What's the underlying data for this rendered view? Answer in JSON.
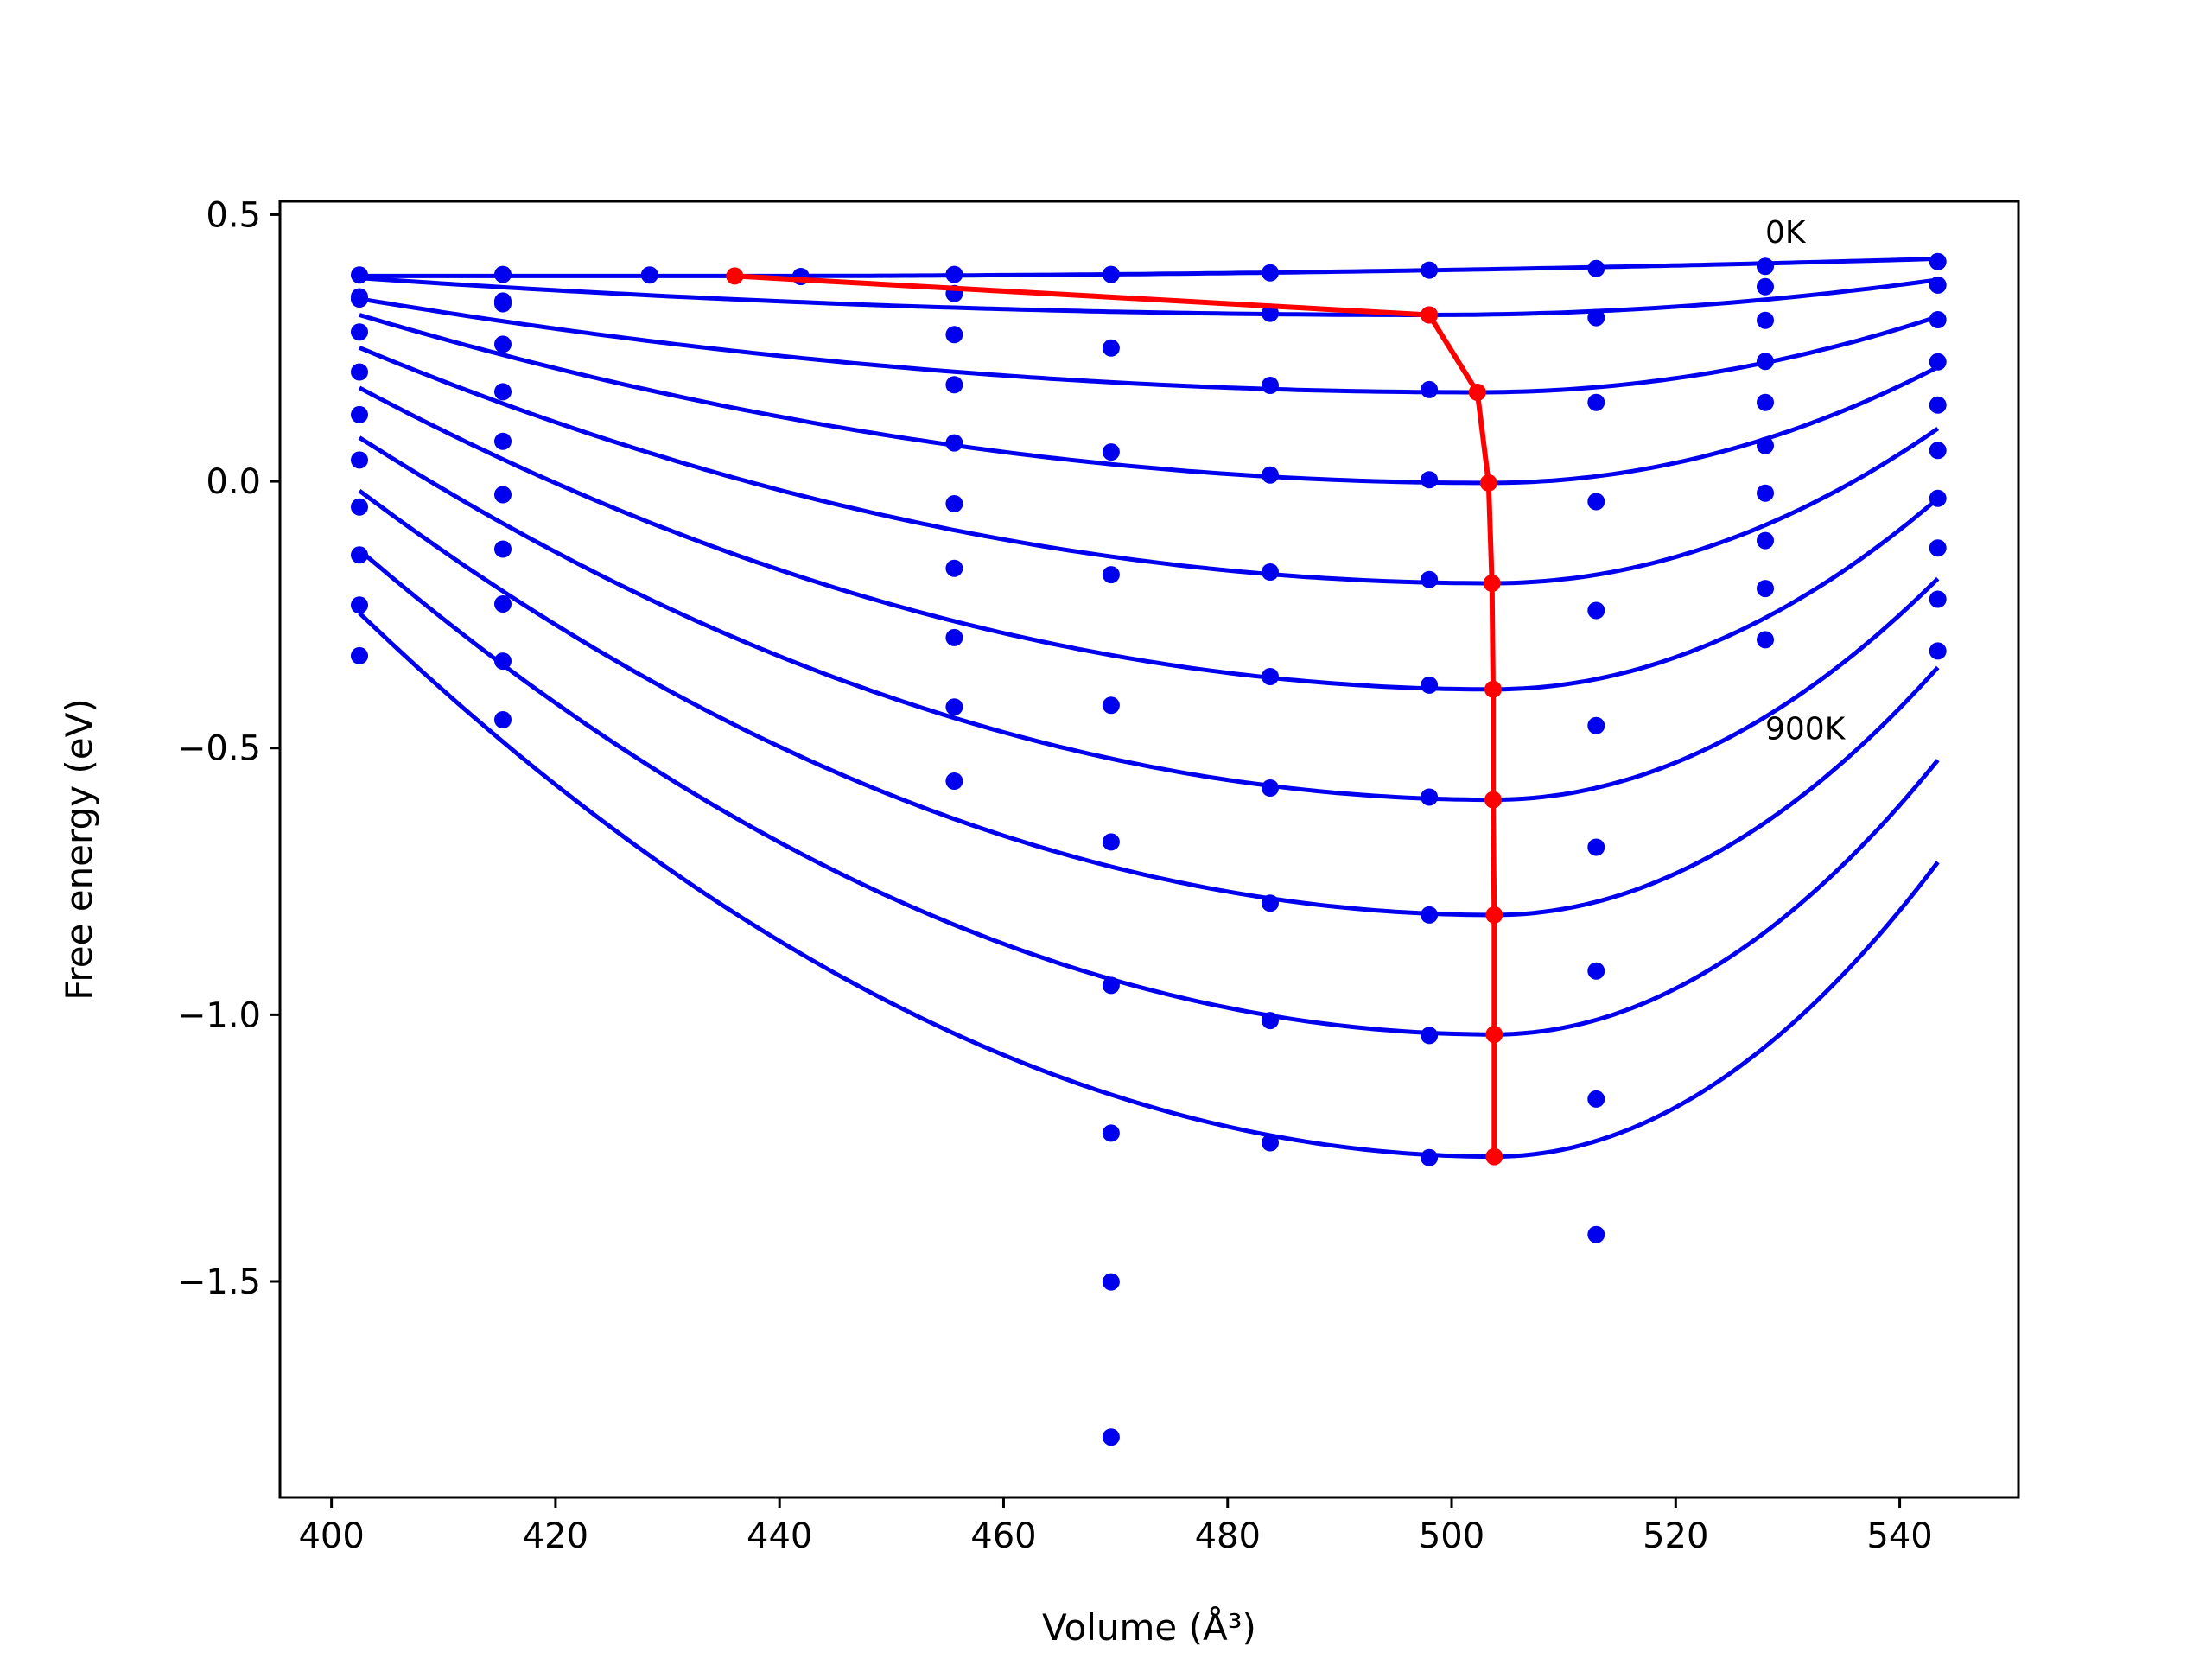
{
  "chart_data": {
    "type": "line",
    "xlabel": "Volume (Å³)",
    "ylabel": "Free energy (eV)",
    "xlim": [
      395.4,
      550.6
    ],
    "ylim": [
      -1.905,
      0.525
    ],
    "xticks": [
      400,
      420,
      440,
      460,
      480,
      500,
      520,
      540
    ],
    "xtick_labels": [
      "400",
      "420",
      "440",
      "460",
      "480",
      "500",
      "520",
      "540"
    ],
    "yticks": [
      -1.5,
      -1.0,
      -0.5,
      0.0,
      0.5
    ],
    "ytick_labels": [
      "−1.5",
      "−1.0",
      "−0.5",
      "0.0",
      "0.5"
    ],
    "grid": false,
    "legend": "none",
    "colors": {
      "data": "#0000ee",
      "minimum_path": "#ff0000",
      "frame": "#000000"
    },
    "annotations": [
      {
        "text": "0K",
        "x": 528.0,
        "y": 0.468
      },
      {
        "text": "900K",
        "x": 528.0,
        "y": -0.462
      }
    ],
    "volumes": [
      402.5,
      415.3,
      428.4,
      441.9,
      455.6,
      469.6,
      483.8,
      498.0,
      512.9,
      528.0,
      543.4
    ],
    "computed_points": [
      {
        "x": [
          402.5,
          415.3,
          428.4,
          441.9,
          455.6,
          469.6,
          483.8,
          498.0,
          512.9,
          528.0,
          543.4
        ],
        "y": [
          0.387,
          0.388,
          0.387,
          0.384,
          0.388,
          0.388,
          0.391,
          0.396,
          0.399,
          0.403,
          0.412
        ]
      },
      {
        "x": [
          402.5,
          415.3,
          455.6,
          483.8,
          498.0,
          512.9,
          528.0,
          543.4
        ],
        "y": [
          0.346,
          0.338,
          0.352,
          0.315,
          0.312,
          0.307,
          0.365,
          0.368
        ]
      },
      {
        "x": [
          402.5,
          415.3,
          455.6,
          469.6,
          483.8,
          498.0,
          512.9,
          528.0,
          543.4
        ],
        "y": [
          0.342,
          0.333,
          0.275,
          0.25,
          0.18,
          0.172,
          0.148,
          0.302,
          0.303
        ]
      },
      {
        "x": [
          402.5,
          415.3,
          455.6,
          469.6,
          483.8,
          498.0,
          512.9,
          528.0,
          543.4
        ],
        "y": [
          0.28,
          0.257,
          0.181,
          0.055,
          0.012,
          0.003,
          -0.038,
          0.225,
          0.224
        ]
      },
      {
        "x": [
          402.5,
          415.3,
          455.6,
          469.6,
          483.8,
          498.0,
          512.9,
          528.0,
          543.4
        ],
        "y": [
          0.205,
          0.168,
          0.072,
          -0.175,
          -0.17,
          -0.184,
          -0.242,
          0.148,
          0.143
        ]
      },
      {
        "x": [
          402.5,
          415.3,
          455.6,
          469.6,
          483.8,
          498.0,
          512.9,
          528.0,
          543.4
        ],
        "y": [
          0.125,
          0.075,
          -0.042,
          -0.42,
          -0.366,
          -0.382,
          -0.458,
          0.067,
          0.058
        ]
      },
      {
        "x": [
          402.5,
          415.3,
          455.6,
          469.6,
          483.8,
          498.0,
          512.9,
          528.0,
          543.4
        ],
        "y": [
          0.04,
          -0.025,
          -0.163,
          -0.676,
          -0.575,
          -0.592,
          -0.686,
          -0.022,
          -0.032
        ]
      },
      {
        "x": [
          402.5,
          415.3,
          455.6,
          469.6,
          483.8,
          498.0,
          512.9,
          528.0,
          543.4
        ],
        "y": [
          -0.048,
          -0.127,
          -0.293,
          -0.945,
          -0.791,
          -0.813,
          -0.918,
          -0.111,
          -0.125
        ]
      },
      {
        "x": [
          402.5,
          415.3,
          455.6,
          469.6,
          483.8,
          498.0,
          512.9,
          528.0,
          543.4
        ],
        "y": [
          -0.138,
          -0.23,
          -0.423,
          -1.222,
          -1.011,
          -1.039,
          -1.158,
          -0.201,
          -0.221
        ]
      },
      {
        "x": [
          402.5,
          415.3,
          455.6,
          469.6,
          483.8,
          498.0,
          512.9,
          528.0,
          543.4
        ],
        "y": [
          -0.232,
          -0.337,
          -0.562,
          -1.501,
          -1.24,
          -1.268,
          -1.412,
          -0.297,
          -0.318
        ]
      },
      {
        "x": [
          402.5,
          415.3,
          469.6
        ],
        "y": [
          -0.327,
          -0.447,
          -1.792
        ]
      }
    ],
    "fitted_curves": [
      {
        "x_range": [
          402.5,
          543.4
        ],
        "v0": 436.0,
        "f0": 0.385,
        "k_left": 0.0,
        "k_right": 2.8e-06
      },
      {
        "x_range": [
          402.5,
          543.4
        ],
        "v0": 498.0,
        "f0": 0.312,
        "k_left": 7.6e-06,
        "k_right": 3.2e-05
      },
      {
        "x_range": [
          402.5,
          543.4
        ],
        "v0": 502.3,
        "f0": 0.167,
        "k_left": 1.76e-05,
        "k_right": 8.4e-05
      },
      {
        "x_range": [
          402.5,
          543.4
        ],
        "v0": 503.3,
        "f0": -0.003,
        "k_left": 3.1e-05,
        "k_right": 0.000135
      },
      {
        "x_range": [
          402.5,
          543.4
        ],
        "v0": 503.6,
        "f0": -0.191,
        "k_left": 4.32e-05,
        "k_right": 0.000183
      },
      {
        "x_range": [
          402.5,
          543.4
        ],
        "v0": 503.7,
        "f0": -0.39,
        "k_left": 5.52e-05,
        "k_right": 0.000227
      },
      {
        "x_range": [
          402.5,
          543.4
        ],
        "v0": 503.7,
        "f0": -0.597,
        "k_left": 6.63e-05,
        "k_right": 0.000263
      },
      {
        "x_range": [
          402.5,
          543.4
        ],
        "v0": 503.8,
        "f0": -0.813,
        "k_left": 7.75e-05,
        "k_right": 0.000296
      },
      {
        "x_range": [
          402.5,
          543.4
        ],
        "v0": 503.8,
        "f0": -1.037,
        "k_left": 8.85e-05,
        "k_right": 0.000328
      },
      {
        "x_range": [
          402.5,
          543.4
        ],
        "v0": 503.8,
        "f0": -1.266,
        "k_left": 9.93e-05,
        "k_right": 0.000352
      }
    ],
    "minimum_path": {
      "x": [
        436.0,
        498.0,
        502.3,
        503.3,
        503.6,
        503.7,
        503.7,
        503.8,
        503.8,
        503.8
      ],
      "y": [
        0.385,
        0.312,
        0.167,
        -0.003,
        -0.191,
        -0.39,
        -0.597,
        -0.813,
        -1.037,
        -1.266
      ]
    }
  }
}
